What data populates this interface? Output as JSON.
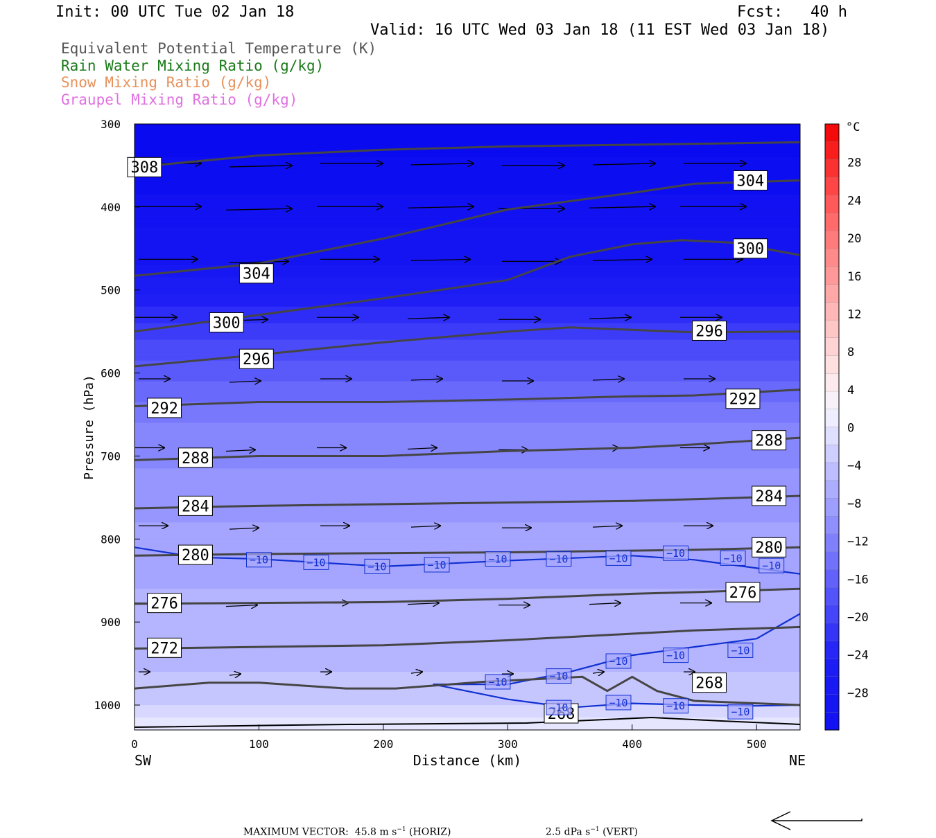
{
  "header": {
    "init": "Init: 00 UTC Tue 02 Jan 18",
    "fcst": "Fcst:   40 h",
    "valid": "Valid: 16 UTC Wed 03 Jan 18 (11 EST Wed 03 Jan 18)"
  },
  "fields": [
    {
      "label": "Equivalent Potential Temperature (K)",
      "color": "#555555"
    },
    {
      "label": "Rain Water Mixing Ratio (g/kg)",
      "color": "#1a7a1a"
    },
    {
      "label": "Snow Mixing Ratio (g/kg)",
      "color": "#e8905a"
    },
    {
      "label": "Graupel Mixing Ratio (g/kg)",
      "color": "#e070e0"
    }
  ],
  "chart_data": {
    "type": "cross-section",
    "xlabel": "Distance (km)",
    "ylabel": "Pressure (hPa)",
    "xlim": [
      0,
      535
    ],
    "ylim": [
      1030,
      300
    ],
    "x_ticks": [
      0,
      100,
      200,
      300,
      400,
      500
    ],
    "y_ticks": [
      300,
      400,
      500,
      600,
      700,
      800,
      900,
      1000
    ],
    "left_endpoint": "SW",
    "right_endpoint": "NE",
    "colorbar": {
      "unit": "°C",
      "ticks": [
        28,
        24,
        20,
        16,
        12,
        8,
        4,
        0,
        -4,
        -8,
        -12,
        -16,
        -20,
        -24,
        -28
      ]
    },
    "temperature_fill": [
      {
        "p": 300,
        "t": -40
      },
      {
        "p": 470,
        "t": -32
      },
      {
        "p": 520,
        "t": -26
      },
      {
        "p": 560,
        "t": -22
      },
      {
        "p": 610,
        "t": -18
      },
      {
        "p": 660,
        "t": -14
      },
      {
        "p": 740,
        "t": -11
      },
      {
        "p": 860,
        "t": -8
      },
      {
        "p": 960,
        "t": -6
      },
      {
        "p": 1000,
        "t": -4
      },
      {
        "p": 1025,
        "t": -1
      }
    ],
    "theta_e_contours": [
      {
        "level": 308,
        "x": [
          0,
          100,
          200,
          300,
          400,
          535
        ],
        "p": [
          352,
          338,
          331,
          327,
          325,
          322
        ]
      },
      {
        "level": 304,
        "x": [
          0,
          100,
          200,
          300,
          400,
          450,
          535
        ],
        "p": [
          483,
          468,
          438,
          403,
          383,
          372,
          368
        ]
      },
      {
        "level": 300,
        "x": [
          0,
          100,
          200,
          300,
          350,
          400,
          440,
          480,
          535
        ],
        "p": [
          550,
          530,
          510,
          488,
          460,
          445,
          440,
          443,
          458
        ]
      },
      {
        "level": 296,
        "x": [
          0,
          100,
          200,
          300,
          350,
          400,
          450,
          535
        ],
        "p": [
          592,
          578,
          563,
          550,
          545,
          548,
          551,
          550
        ]
      },
      {
        "level": 292,
        "x": [
          0,
          100,
          200,
          300,
          400,
          450,
          535
        ],
        "p": [
          640,
          635,
          635,
          632,
          628,
          627,
          620
        ]
      },
      {
        "level": 288,
        "x": [
          0,
          100,
          200,
          300,
          400,
          450,
          535
        ],
        "p": [
          705,
          700,
          700,
          694,
          690,
          686,
          678
        ]
      },
      {
        "level": 284,
        "x": [
          0,
          100,
          200,
          300,
          400,
          450,
          535
        ],
        "p": [
          763,
          760,
          758,
          756,
          754,
          752,
          748
        ]
      },
      {
        "level": 280,
        "x": [
          0,
          100,
          200,
          300,
          400,
          450,
          535
        ],
        "p": [
          820,
          818,
          817,
          816,
          814,
          813,
          810
        ]
      },
      {
        "level": 276,
        "x": [
          0,
          100,
          200,
          300,
          400,
          450,
          535
        ],
        "p": [
          878,
          877,
          876,
          872,
          866,
          864,
          860
        ]
      },
      {
        "level": 272,
        "x": [
          0,
          100,
          200,
          300,
          400,
          450,
          535
        ],
        "p": [
          932,
          930,
          928,
          922,
          914,
          910,
          906
        ]
      },
      {
        "level": 268,
        "x": [
          0,
          60,
          100,
          170,
          210,
          280,
          360,
          380,
          400,
          420,
          450,
          535
        ],
        "p": [
          980,
          973,
          973,
          980,
          980,
          972,
          966,
          983,
          966,
          983,
          995,
          1000
        ]
      }
    ],
    "isotherm_minus10": [
      {
        "x": [
          0,
          50,
          100,
          200,
          300,
          400,
          450,
          535
        ],
        "p": [
          810,
          822,
          824,
          833,
          826,
          820,
          825,
          842
        ]
      },
      {
        "x": [
          240,
          300,
          350,
          400,
          450,
          500,
          535
        ],
        "p": [
          975,
          975,
          960,
          940,
          930,
          920,
          890
        ]
      },
      {
        "x": [
          240,
          300,
          350,
          400,
          450,
          500,
          535
        ],
        "p": [
          975,
          993,
          1003,
          998,
          1000,
          1001,
          1000
        ]
      }
    ],
    "max_vector": {
      "label": "MAXIMUM VECTOR:  45.8 m s",
      "horiz_suffix": " (HORIZ)",
      "vert": "2.5 dPa s",
      "vert_suffix": " (VERT)"
    }
  }
}
